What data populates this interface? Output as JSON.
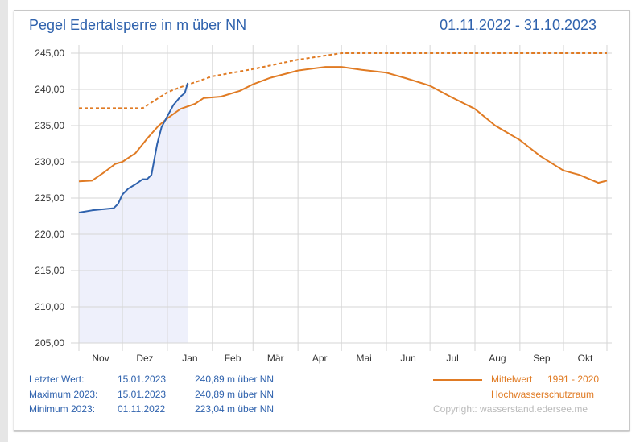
{
  "header": {
    "title": "Pegel Edertalsperre in m über NN",
    "date_range": "01.11.2022 - 31.10.2023"
  },
  "info": [
    {
      "label": "Letzter Wert:",
      "date": "15.01.2023",
      "value": "240,89 m über NN"
    },
    {
      "label": "Maximum 2023:",
      "date": "15.01.2023",
      "value": "240,89 m über NN"
    },
    {
      "label": "Minimum 2023:",
      "date": "01.11.2022",
      "value": "223,04 m über NN"
    }
  ],
  "legend": {
    "mean_label": "Mittelwert",
    "mean_period": "1991 - 2020",
    "flood_label": "Hochwasserschutzraum"
  },
  "copyright": "Copyright: wasserstand.edersee.me",
  "chart_data": {
    "type": "line",
    "x_range": [
      "2022-11-01",
      "2023-10-31"
    ],
    "ylim": [
      205,
      245
    ],
    "y_ticks": [
      "205,00",
      "210,00",
      "215,00",
      "220,00",
      "225,00",
      "230,00",
      "235,00",
      "240,00",
      "245,00"
    ],
    "x_ticks": [
      "Nov",
      "Dez",
      "Jan",
      "Feb",
      "Mär",
      "Apr",
      "Mai",
      "Jun",
      "Jul",
      "Aug",
      "Sep",
      "Okt"
    ],
    "grid": true,
    "colors": {
      "actual": "#2f62ad",
      "mean": "#e07b24",
      "flood": "#e07b24",
      "fill": "#eef0fb"
    },
    "series": [
      {
        "name": "Mittelwert 1991 - 2020",
        "style": "solid",
        "points": [
          [
            "2022-11-01",
            227.3
          ],
          [
            "2022-11-10",
            227.4
          ],
          [
            "2022-11-18",
            228.5
          ],
          [
            "2022-11-26",
            229.7
          ],
          [
            "2022-12-01",
            230.0
          ],
          [
            "2022-12-10",
            231.2
          ],
          [
            "2022-12-18",
            233.2
          ],
          [
            "2022-12-26",
            235.0
          ],
          [
            "2023-01-01",
            236.0
          ],
          [
            "2023-01-10",
            237.3
          ],
          [
            "2023-01-20",
            238.0
          ],
          [
            "2023-01-26",
            238.8
          ],
          [
            "2023-02-07",
            239.0
          ],
          [
            "2023-02-20",
            239.8
          ],
          [
            "2023-03-01",
            240.7
          ],
          [
            "2023-03-13",
            241.6
          ],
          [
            "2023-04-01",
            242.6
          ],
          [
            "2023-04-20",
            243.1
          ],
          [
            "2023-05-01",
            243.1
          ],
          [
            "2023-05-15",
            242.7
          ],
          [
            "2023-06-01",
            242.3
          ],
          [
            "2023-06-15",
            241.5
          ],
          [
            "2023-07-01",
            240.5
          ],
          [
            "2023-07-15",
            239.0
          ],
          [
            "2023-08-01",
            237.3
          ],
          [
            "2023-08-15",
            235.0
          ],
          [
            "2023-09-01",
            233.0
          ],
          [
            "2023-09-15",
            230.8
          ],
          [
            "2023-10-01",
            228.8
          ],
          [
            "2023-10-12",
            228.2
          ],
          [
            "2023-10-25",
            227.1
          ],
          [
            "2023-10-31",
            227.4
          ]
        ]
      },
      {
        "name": "Hochwasserschutzraum",
        "style": "dashed",
        "points": [
          [
            "2022-11-01",
            237.4
          ],
          [
            "2022-12-15",
            237.4
          ],
          [
            "2023-01-01",
            239.6
          ],
          [
            "2023-01-10",
            240.3
          ],
          [
            "2023-02-01",
            241.8
          ],
          [
            "2023-03-01",
            242.8
          ],
          [
            "2023-04-01",
            244.1
          ],
          [
            "2023-05-01",
            245.0
          ],
          [
            "2023-10-31",
            245.0
          ]
        ]
      },
      {
        "name": "Pegel",
        "style": "solid-filled",
        "points": [
          [
            "2022-11-01",
            223.0
          ],
          [
            "2022-11-10",
            223.3
          ],
          [
            "2022-11-20",
            223.5
          ],
          [
            "2022-11-25",
            223.6
          ],
          [
            "2022-11-28",
            224.2
          ],
          [
            "2022-12-01",
            225.5
          ],
          [
            "2022-12-05",
            226.3
          ],
          [
            "2022-12-10",
            226.9
          ],
          [
            "2022-12-15",
            227.6
          ],
          [
            "2022-12-18",
            227.6
          ],
          [
            "2022-12-21",
            228.2
          ],
          [
            "2022-12-25",
            232.5
          ],
          [
            "2022-12-28",
            234.8
          ],
          [
            "2023-01-01",
            236.3
          ],
          [
            "2023-01-05",
            237.8
          ],
          [
            "2023-01-10",
            239.0
          ],
          [
            "2023-01-13",
            239.5
          ],
          [
            "2023-01-15",
            240.89
          ]
        ]
      }
    ]
  }
}
